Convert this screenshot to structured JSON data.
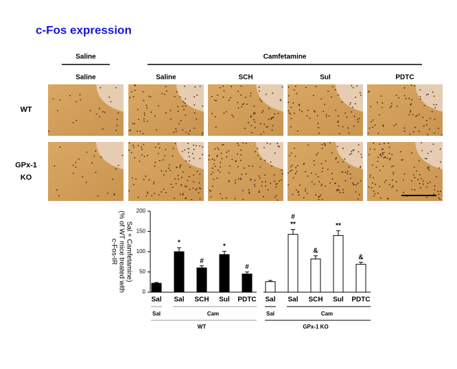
{
  "title": "c-Fos expression",
  "micrograph": {
    "header": [
      "Saline",
      "Camfetamine"
    ],
    "columns": [
      "Saline",
      "Saline",
      "SCH",
      "Sul",
      "PDTC"
    ],
    "rows": [
      "WT",
      "GPx-1 KO"
    ]
  },
  "chart_data": {
    "type": "bar",
    "ylabel": [
      "c-Fos-IR",
      "(% of WT mice treated with",
      "Sal + Camfetamine)"
    ],
    "categories": [
      "Sal",
      "Sal",
      "SCH",
      "Sul",
      "PDTC"
    ],
    "groups": [
      "Sal",
      "Cam"
    ],
    "ylim": [
      0,
      200
    ],
    "yticks": [
      0,
      50,
      100,
      150,
      200
    ],
    "series": [
      {
        "name": "WT",
        "color": "#000000",
        "values": [
          22,
          100,
          60,
          93,
          45
        ],
        "errors": [
          2,
          10,
          5,
          8,
          5
        ],
        "annotations": [
          [],
          [
            "*"
          ],
          [
            "#"
          ],
          [
            "*"
          ],
          [
            "#"
          ]
        ]
      },
      {
        "name": "GPx-1 KO",
        "color": "#ffffff",
        "values": [
          26,
          143,
          82,
          140,
          69
        ],
        "errors": [
          3,
          12,
          8,
          12,
          5
        ],
        "annotations": [
          [],
          [
            "#",
            "**"
          ],
          [
            "&"
          ],
          [
            "**"
          ],
          [
            "&"
          ]
        ]
      }
    ]
  }
}
